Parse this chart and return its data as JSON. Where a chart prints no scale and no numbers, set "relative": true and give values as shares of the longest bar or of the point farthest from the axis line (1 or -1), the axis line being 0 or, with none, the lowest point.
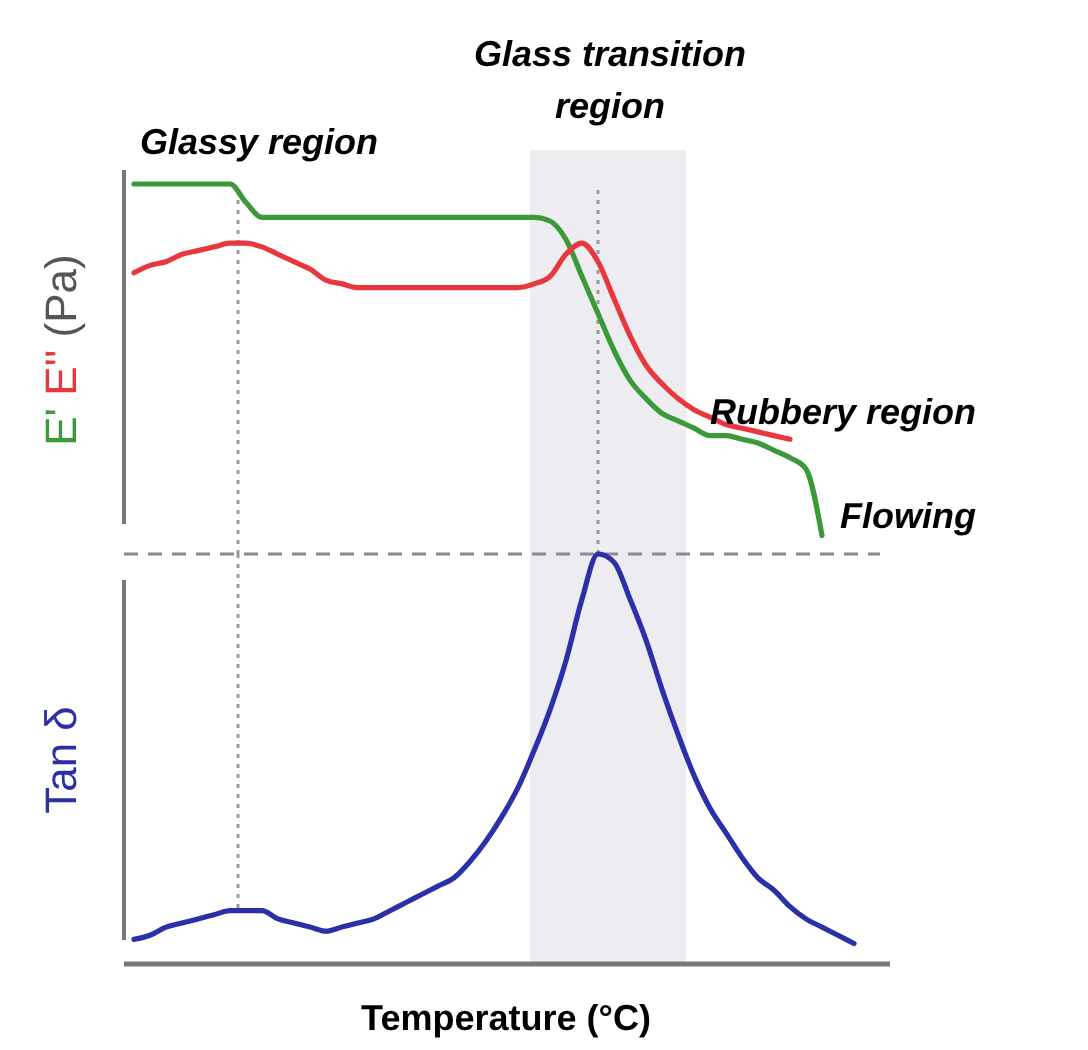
{
  "chart_data": [
    {
      "type": "line",
      "relative": true,
      "ylabel": "(Pa)",
      "categories": [
        null,
        null,
        null,
        null,
        null,
        null,
        null,
        null,
        null,
        null,
        null,
        null,
        null,
        null,
        null,
        null,
        null,
        null,
        null,
        null,
        null,
        null,
        null,
        null,
        null,
        null,
        null,
        null,
        null,
        null,
        null,
        null,
        null,
        null,
        null,
        null,
        null,
        null,
        null,
        null,
        null,
        null,
        null,
        null,
        null,
        null
      ],
      "series": [
        {
          "name": "E'",
          "color": "#3a9a3a",
          "values": [
            1,
            1,
            1,
            1,
            1,
            1,
            1,
            0.95,
            0.91,
            0.91,
            0.91,
            0.91,
            0.91,
            0.91,
            0.91,
            0.91,
            0.91,
            0.91,
            0.91,
            0.91,
            0.91,
            0.91,
            0.91,
            0.91,
            0.91,
            0.91,
            0.9,
            0.85,
            0.75,
            0.65,
            0.55,
            0.47,
            0.42,
            0.38,
            0.36,
            0.34,
            0.32,
            0.32,
            0.31,
            0.3,
            0.28,
            0.26,
            0.23,
            0.05,
            null,
            null
          ]
        },
        {
          "name": "E''",
          "color": "#e8383d",
          "values": [
            0.76,
            0.78,
            0.79,
            0.81,
            0.82,
            0.83,
            0.84,
            0.84,
            0.83,
            0.81,
            0.79,
            0.77,
            0.74,
            0.73,
            0.72,
            0.72,
            0.72,
            0.72,
            0.72,
            0.72,
            0.72,
            0.72,
            0.72,
            0.72,
            0.72,
            0.73,
            0.75,
            0.81,
            0.84,
            0.79,
            0.69,
            0.59,
            0.51,
            0.46,
            0.42,
            0.39,
            0.37,
            0.35,
            0.34,
            0.33,
            0.32,
            0.31,
            null,
            null,
            null,
            null
          ]
        }
      ],
      "annotations": [
        "Glassy region",
        "Glass transition region",
        "Rubbery region",
        "Flowing"
      ]
    },
    {
      "type": "line",
      "relative": true,
      "xlabel": "Temperature (°C)",
      "categories": [
        null,
        null,
        null,
        null,
        null,
        null,
        null,
        null,
        null,
        null,
        null,
        null,
        null,
        null,
        null,
        null,
        null,
        null,
        null,
        null,
        null,
        null,
        null,
        null,
        null,
        null,
        null,
        null,
        null,
        null,
        null,
        null,
        null,
        null,
        null,
        null,
        null,
        null,
        null,
        null,
        null,
        null,
        null,
        null,
        null,
        null
      ],
      "series": [
        {
          "name": "Tan δ",
          "color": "#2b2fa8",
          "values": [
            0.06,
            0.07,
            0.09,
            0.1,
            0.11,
            0.12,
            0.13,
            0.13,
            0.13,
            0.11,
            0.1,
            0.09,
            0.08,
            0.09,
            0.1,
            0.11,
            0.13,
            0.15,
            0.17,
            0.19,
            0.21,
            0.25,
            0.3,
            0.36,
            0.43,
            0.52,
            0.62,
            0.74,
            0.89,
            1,
            0.98,
            0.89,
            0.79,
            0.67,
            0.56,
            0.46,
            0.38,
            0.32,
            0.26,
            0.21,
            0.18,
            0.14,
            0.11,
            0.09,
            0.07,
            0.05
          ]
        }
      ],
      "ref_lines": [
        {
          "axis": "y",
          "value": 1,
          "color": "#8a8a8a",
          "line_style": "dashed"
        }
      ]
    }
  ]
}
